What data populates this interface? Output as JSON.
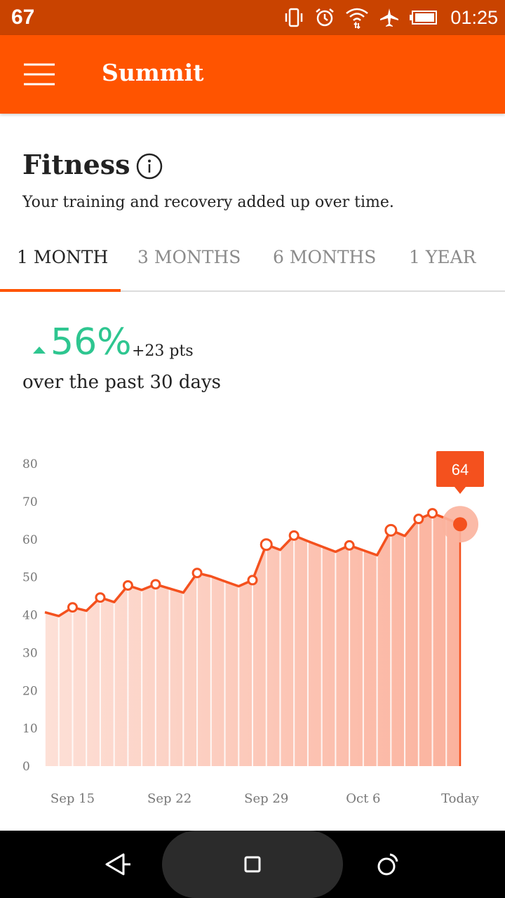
{
  "status_bar": {
    "left_number": "67",
    "time": "01:25",
    "icons": [
      "vibrate-icon",
      "alarm-icon",
      "wifi-icon",
      "airplane-icon",
      "battery-icon"
    ]
  },
  "app_bar": {
    "title": "Summit",
    "menu_icon": "hamburger-menu-icon"
  },
  "header": {
    "title": "Fitness",
    "info_icon": "info-icon",
    "subtitle": "Your training and recovery added up over time."
  },
  "tabs": [
    {
      "label": "1 MONTH",
      "active": true
    },
    {
      "label": "3 MONTHS",
      "active": false
    },
    {
      "label": "6 MONTHS",
      "active": false
    },
    {
      "label": "1 YEAR",
      "active": false
    }
  ],
  "summary": {
    "change_percent": "56%",
    "change_points": "+23 pts",
    "period": "over the past 30 days",
    "trend": "up"
  },
  "colors": {
    "status_bar": "#c94300",
    "accent": "#ff5400",
    "chart_line": "#f4511e",
    "positive": "#2ec690"
  },
  "chart_data": {
    "type": "area",
    "ylim": [
      0,
      80
    ],
    "y_ticks": [
      0,
      10,
      20,
      30,
      40,
      50,
      60,
      70,
      80
    ],
    "x_tick_labels": [
      {
        "day": 2,
        "label": "Sep 15"
      },
      {
        "day": 9,
        "label": "Sep 22"
      },
      {
        "day": 16,
        "label": "Sep 29"
      },
      {
        "day": 23,
        "label": "Oct 6"
      },
      {
        "day": 30,
        "label": "Today"
      }
    ],
    "series": [
      {
        "values": [
          40.7,
          39.7,
          42.0,
          41.1,
          44.6,
          43.4,
          47.8,
          46.6,
          48.1,
          47.0,
          45.9,
          51.1,
          50.2,
          48.9,
          47.6,
          49.2,
          58.6,
          57.2,
          61.0,
          59.5,
          58.1,
          56.7,
          58.4,
          57.1,
          55.8,
          62.4,
          60.9,
          65.4,
          66.9,
          65.5,
          64.0
        ],
        "marked_days": [
          2,
          4,
          6,
          8,
          11,
          15,
          16,
          18,
          22,
          25,
          27,
          28
        ]
      }
    ],
    "selected": {
      "day": 30,
      "label": "64"
    },
    "grid": false,
    "legend": "none"
  },
  "nav_bar": {
    "buttons": [
      "back-icon",
      "home-icon",
      "recents-icon"
    ]
  }
}
